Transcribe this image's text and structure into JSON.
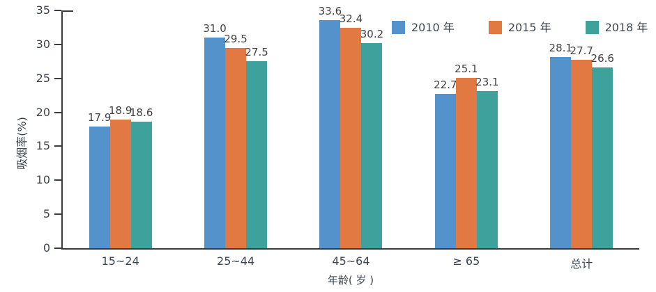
{
  "chart_data": {
    "type": "bar",
    "title": "",
    "categories": [
      "15~24",
      "25~44",
      "45~64",
      "≥ 65",
      "总计"
    ],
    "series": [
      {
        "name": "2010 年",
        "color": "#5392CA",
        "values": [
          17.9,
          31.0,
          33.6,
          22.7,
          28.1
        ]
      },
      {
        "name": "2015 年",
        "color": "#E37942",
        "values": [
          18.9,
          29.5,
          32.4,
          25.1,
          27.7
        ]
      },
      {
        "name": "2018 年",
        "color": "#3FA19C",
        "values": [
          18.6,
          27.5,
          30.2,
          23.1,
          26.6
        ]
      }
    ],
    "xlabel": "年龄( 岁 )",
    "ylabel": "吸烟率(%)",
    "ylim": [
      0,
      35
    ],
    "yticks": [
      0,
      5,
      10,
      15,
      20,
      25,
      30,
      35
    ],
    "grid": false,
    "legend_position": "top-right",
    "value_labels": true,
    "value_label_decimals": 1
  },
  "colors": {
    "axis": "#3B3B3B",
    "text": "#3C4650",
    "value_text": "#414141"
  }
}
